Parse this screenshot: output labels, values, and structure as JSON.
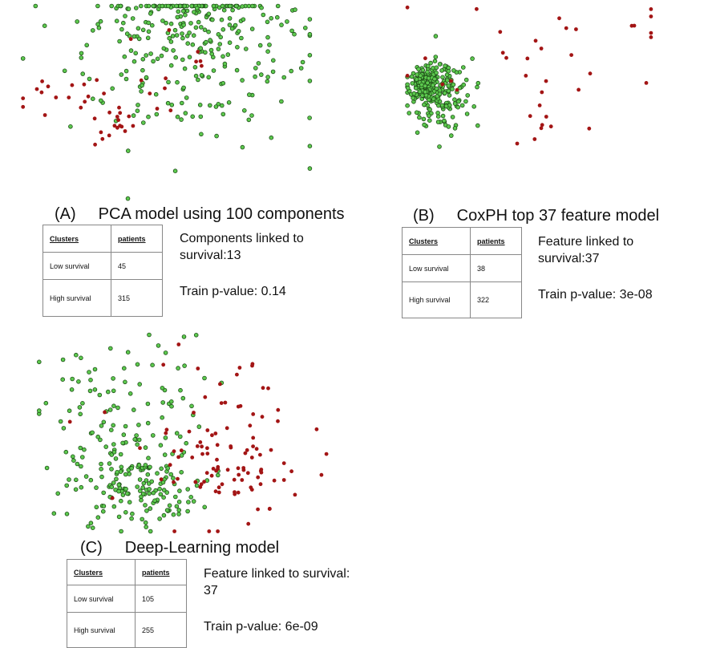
{
  "colors": {
    "low_survival": "#a31515",
    "high_survival": "#5cc94e",
    "point_outline": "#1e4d17"
  },
  "panels": [
    {
      "id": "A",
      "tag": "(A)",
      "title": "PCA model using 100 components",
      "table": {
        "headers": [
          "Clusters",
          "patients"
        ],
        "rows": [
          [
            "Low survival",
            "45"
          ],
          [
            "High survival",
            "315"
          ]
        ]
      },
      "linked": "Components linked to survival:13",
      "pvalue": "Train p-value: 0.14"
    },
    {
      "id": "B",
      "tag": "(B)",
      "title": "CoxPH top 37 feature model",
      "table": {
        "headers": [
          "Clusters",
          "patients"
        ],
        "rows": [
          [
            "Low survival",
            "38"
          ],
          [
            "High survival",
            "322"
          ]
        ]
      },
      "linked": "Feature linked to survival:37",
      "pvalue": "Train p-value: 3e-08"
    },
    {
      "id": "C",
      "tag": "(C)",
      "title": "Deep-Learning model",
      "table": {
        "headers": [
          "Clusters",
          "patients"
        ],
        "rows": [
          [
            "Low survival",
            "105"
          ],
          [
            "High survival",
            "255"
          ]
        ]
      },
      "linked": "Feature linked to survival: 37",
      "pvalue": "Train p-value: 6e-09"
    }
  ],
  "chart_data": [
    {
      "type": "scatter",
      "panel": "A",
      "title": "",
      "xlabel": "",
      "ylabel": "",
      "axes": "none",
      "grid": false,
      "legend": "none",
      "series": [
        {
          "cluster": "Low survival",
          "color": "#a31515",
          "count": 45,
          "centers": [
            [
              -0.75,
              0.05,
              0.18,
              0.16
            ],
            [
              -0.35,
              -0.25,
              0.1,
              0.1
            ],
            [
              0.05,
              0.25,
              0.25,
              0.3
            ]
          ]
        },
        {
          "cluster": "High survival",
          "color": "#5cc94e",
          "count": 315,
          "centers": [
            [
              0.2,
              0.35,
              0.45,
              0.4
            ],
            [
              0.15,
              0.9,
              0.3,
              0.2
            ]
          ]
        }
      ]
    },
    {
      "type": "scatter",
      "panel": "B",
      "title": "",
      "xlabel": "",
      "ylabel": "",
      "axes": "none",
      "grid": false,
      "legend": "none",
      "series": [
        {
          "cluster": "Low survival",
          "color": "#a31515",
          "count": 38,
          "centers": [
            [
              0.35,
              0.6,
              0.55,
              0.3
            ],
            [
              0.1,
              0.1,
              0.25,
              0.4
            ]
          ]
        },
        {
          "cluster": "High survival",
          "color": "#5cc94e",
          "count": 322,
          "centers": [
            [
              -0.85,
              0.15,
              0.06,
              0.08
            ],
            [
              -0.7,
              0.05,
              0.12,
              0.18
            ]
          ]
        }
      ]
    },
    {
      "type": "scatter",
      "panel": "C",
      "title": "",
      "xlabel": "",
      "ylabel": "",
      "axes": "none",
      "grid": false,
      "legend": "none",
      "series": [
        {
          "cluster": "Low survival",
          "color": "#a31515",
          "count": 105,
          "centers": [
            [
              0.35,
              0.05,
              0.3,
              0.4
            ],
            [
              0.25,
              -0.45,
              0.25,
              0.2
            ]
          ]
        },
        {
          "cluster": "High survival",
          "color": "#5cc94e",
          "count": 255,
          "centers": [
            [
              -0.45,
              0.05,
              0.3,
              0.45
            ],
            [
              -0.35,
              -0.55,
              0.2,
              0.2
            ]
          ]
        }
      ]
    }
  ]
}
